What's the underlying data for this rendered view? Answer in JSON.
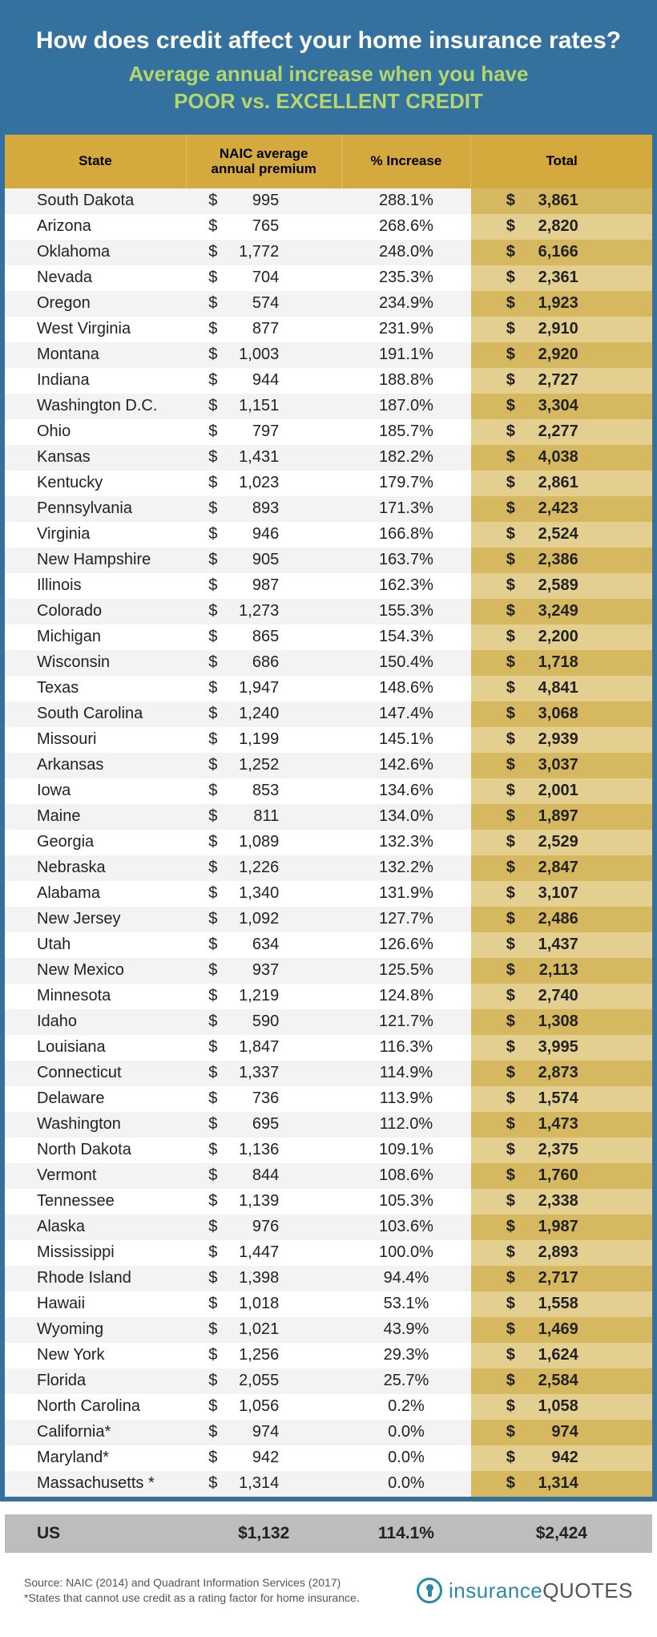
{
  "header": {
    "title": "How does credit affect your home insurance rates?",
    "subtitle_line1": "Average annual increase when you have",
    "subtitle_line2": "POOR vs. EXCELLENT CREDIT"
  },
  "colors": {
    "outer_bg": "#34719f",
    "title_color": "#ffffff",
    "subtitle_color": "#b4d66a",
    "header_row_bg": "#d4a93e",
    "row_even_bg": "#f3f3f3",
    "row_odd_bg": "#ffffff",
    "total_even_bg": "#d6b860",
    "total_odd_bg": "#e3cf8f",
    "us_row_bg": "#bdbdbd",
    "logo_accent": "#2a8aa8"
  },
  "table": {
    "columns": [
      "State",
      "NAIC average annual premium",
      "% Increase",
      "Total"
    ],
    "rows": [
      {
        "state": "South Dakota",
        "premium": "995",
        "increase": "288.1%",
        "total": "3,861"
      },
      {
        "state": "Arizona",
        "premium": "765",
        "increase": "268.6%",
        "total": "2,820"
      },
      {
        "state": "Oklahoma",
        "premium": "1,772",
        "increase": "248.0%",
        "total": "6,166"
      },
      {
        "state": "Nevada",
        "premium": "704",
        "increase": "235.3%",
        "total": "2,361"
      },
      {
        "state": "Oregon",
        "premium": "574",
        "increase": "234.9%",
        "total": "1,923"
      },
      {
        "state": "West Virginia",
        "premium": "877",
        "increase": "231.9%",
        "total": "2,910"
      },
      {
        "state": "Montana",
        "premium": "1,003",
        "increase": "191.1%",
        "total": "2,920"
      },
      {
        "state": "Indiana",
        "premium": "944",
        "increase": "188.8%",
        "total": "2,727"
      },
      {
        "state": "Washington D.C.",
        "premium": "1,151",
        "increase": "187.0%",
        "total": "3,304"
      },
      {
        "state": "Ohio",
        "premium": "797",
        "increase": "185.7%",
        "total": "2,277"
      },
      {
        "state": "Kansas",
        "premium": "1,431",
        "increase": "182.2%",
        "total": "4,038"
      },
      {
        "state": "Kentucky",
        "premium": "1,023",
        "increase": "179.7%",
        "total": "2,861"
      },
      {
        "state": "Pennsylvania",
        "premium": "893",
        "increase": "171.3%",
        "total": "2,423"
      },
      {
        "state": "Virginia",
        "premium": "946",
        "increase": "166.8%",
        "total": "2,524"
      },
      {
        "state": "New Hampshire",
        "premium": "905",
        "increase": "163.7%",
        "total": "2,386"
      },
      {
        "state": "Illinois",
        "premium": "987",
        "increase": "162.3%",
        "total": "2,589"
      },
      {
        "state": "Colorado",
        "premium": "1,273",
        "increase": "155.3%",
        "total": "3,249"
      },
      {
        "state": "Michigan",
        "premium": "865",
        "increase": "154.3%",
        "total": "2,200"
      },
      {
        "state": "Wisconsin",
        "premium": "686",
        "increase": "150.4%",
        "total": "1,718"
      },
      {
        "state": "Texas",
        "premium": "1,947",
        "increase": "148.6%",
        "total": "4,841"
      },
      {
        "state": "South Carolina",
        "premium": "1,240",
        "increase": "147.4%",
        "total": "3,068"
      },
      {
        "state": "Missouri",
        "premium": "1,199",
        "increase": "145.1%",
        "total": "2,939"
      },
      {
        "state": "Arkansas",
        "premium": "1,252",
        "increase": "142.6%",
        "total": "3,037"
      },
      {
        "state": "Iowa",
        "premium": "853",
        "increase": "134.6%",
        "total": "2,001"
      },
      {
        "state": "Maine",
        "premium": "811",
        "increase": "134.0%",
        "total": "1,897"
      },
      {
        "state": "Georgia",
        "premium": "1,089",
        "increase": "132.3%",
        "total": "2,529"
      },
      {
        "state": "Nebraska",
        "premium": "1,226",
        "increase": "132.2%",
        "total": "2,847"
      },
      {
        "state": "Alabama",
        "premium": "1,340",
        "increase": "131.9%",
        "total": "3,107"
      },
      {
        "state": "New Jersey",
        "premium": "1,092",
        "increase": "127.7%",
        "total": "2,486"
      },
      {
        "state": "Utah",
        "premium": "634",
        "increase": "126.6%",
        "total": "1,437"
      },
      {
        "state": "New Mexico",
        "premium": "937",
        "increase": "125.5%",
        "total": "2,113"
      },
      {
        "state": "Minnesota",
        "premium": "1,219",
        "increase": "124.8%",
        "total": "2,740"
      },
      {
        "state": "Idaho",
        "premium": "590",
        "increase": "121.7%",
        "total": "1,308"
      },
      {
        "state": "Louisiana",
        "premium": "1,847",
        "increase": "116.3%",
        "total": "3,995"
      },
      {
        "state": "Connecticut",
        "premium": "1,337",
        "increase": "114.9%",
        "total": "2,873"
      },
      {
        "state": "Delaware",
        "premium": "736",
        "increase": "113.9%",
        "total": "1,574"
      },
      {
        "state": "Washington",
        "premium": "695",
        "increase": "112.0%",
        "total": "1,473"
      },
      {
        "state": "North Dakota",
        "premium": "1,136",
        "increase": "109.1%",
        "total": "2,375"
      },
      {
        "state": "Vermont",
        "premium": "844",
        "increase": "108.6%",
        "total": "1,760"
      },
      {
        "state": "Tennessee",
        "premium": "1,139",
        "increase": "105.3%",
        "total": "2,338"
      },
      {
        "state": "Alaska",
        "premium": "976",
        "increase": "103.6%",
        "total": "1,987"
      },
      {
        "state": "Mississippi",
        "premium": "1,447",
        "increase": "100.0%",
        "total": "2,893"
      },
      {
        "state": "Rhode Island",
        "premium": "1,398",
        "increase": "94.4%",
        "total": "2,717"
      },
      {
        "state": "Hawaii",
        "premium": "1,018",
        "increase": "53.1%",
        "total": "1,558"
      },
      {
        "state": "Wyoming",
        "premium": "1,021",
        "increase": "43.9%",
        "total": "1,469"
      },
      {
        "state": "New York",
        "premium": "1,256",
        "increase": "29.3%",
        "total": "1,624"
      },
      {
        "state": "Florida",
        "premium": "2,055",
        "increase": "25.7%",
        "total": "2,584"
      },
      {
        "state": "North Carolina",
        "premium": "1,056",
        "increase": "0.2%",
        "total": "1,058"
      },
      {
        "state": "California*",
        "premium": "974",
        "increase": "0.0%",
        "total": "974"
      },
      {
        "state": "Maryland*",
        "premium": "942",
        "increase": "0.0%",
        "total": "942"
      },
      {
        "state": "Massachusetts *",
        "premium": "1,314",
        "increase": "0.0%",
        "total": "1,314"
      }
    ]
  },
  "us_row": {
    "label": "US",
    "premium": "$1,132",
    "increase": "114.1%",
    "total": "$2,424"
  },
  "footer": {
    "source_line1": "Source: NAIC (2014) and Quadrant Information Services (2017)",
    "source_line2": "*States that cannot use credit as a rating factor for home insurance.",
    "logo_text1": "insurance",
    "logo_text2": "QUOTES"
  }
}
